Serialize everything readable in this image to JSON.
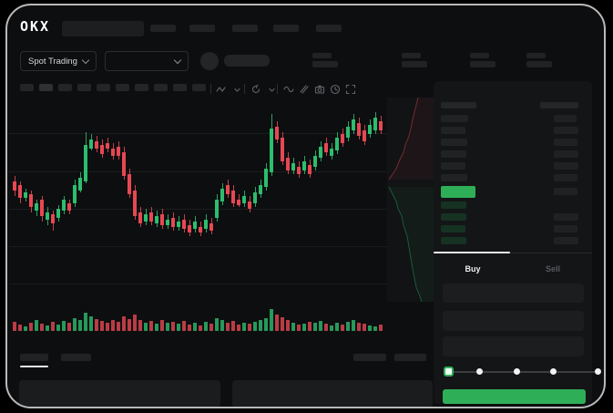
{
  "colors": {
    "accent_green": "#2fae58",
    "candle_green": "#2dbd6e",
    "candle_red": "#e64853",
    "bg": "#0d0e10",
    "panel": "#141517",
    "placeholder": "#202224",
    "bid_row_green": "#163222"
  },
  "header": {
    "logo": "OKX"
  },
  "market_bar": {
    "pair_selector_label": "Spot Trading"
  },
  "icons": {
    "header": [
      "search-placeholder",
      "chevron-down-icon",
      "avatar"
    ],
    "toolbar": [
      "zigzag-indicator-icon",
      "chevron-down-icon",
      "restore-icon",
      "chevron-down-icon",
      "wave-icon",
      "trendline-icon",
      "camera-icon",
      "clock-icon",
      "fullscreen-icon"
    ],
    "orderbook_toggles": [
      "book-both-icon",
      "book-bids-icon",
      "book-asks-icon"
    ]
  },
  "toolbar": {
    "interval_placeholder_count": 10,
    "active_index": 1
  },
  "order_book": {
    "asks": [
      {
        "price_w": 30,
        "amt_w": 25
      },
      {
        "price_w": 27,
        "amt_w": 27
      },
      {
        "price_w": 29,
        "amt_w": 26
      },
      {
        "price_w": 28,
        "amt_w": 27
      },
      {
        "price_w": 27,
        "amt_w": 27
      },
      {
        "price_w": 29,
        "amt_w": 26
      }
    ],
    "last_price_bar": {
      "w": 38,
      "h": 13
    },
    "bids": [
      {
        "price_w": 28,
        "amt_w": 0
      },
      {
        "price_w": 28,
        "amt_w": 27
      },
      {
        "price_w": 27,
        "amt_w": 26
      },
      {
        "price_w": 28,
        "amt_w": 27
      }
    ]
  },
  "trade_panel": {
    "tabs": [
      {
        "label": "Buy",
        "active": true
      },
      {
        "label": "Sell",
        "active": false
      }
    ],
    "input_count": 3,
    "slider": {
      "stops": 5,
      "active_index": 0,
      "stop_x": [
        481,
        515,
        556,
        596,
        645
      ]
    }
  },
  "chart_data": {
    "type": "candlestick",
    "note": "stylized OKX spot-trading preview; no numeric axis labels visible",
    "candles": [
      [
        "r",
        92,
        10,
        86,
        108
      ],
      [
        "r",
        96,
        14,
        92,
        116
      ],
      [
        "g",
        104,
        6,
        100,
        114
      ],
      [
        "r",
        106,
        14,
        102,
        126
      ],
      [
        "g",
        116,
        8,
        112,
        130
      ],
      [
        "r",
        112,
        18,
        108,
        136
      ],
      [
        "g",
        126,
        8,
        120,
        140
      ],
      [
        "r",
        128,
        10,
        124,
        146
      ],
      [
        "g",
        122,
        10,
        118,
        136
      ],
      [
        "g",
        112,
        12,
        108,
        128
      ],
      [
        "r",
        116,
        8,
        112,
        128
      ],
      [
        "g",
        96,
        20,
        90,
        120
      ],
      [
        "g",
        88,
        14,
        82,
        104
      ],
      [
        "g",
        52,
        40,
        38,
        94
      ],
      [
        "g",
        46,
        10,
        40,
        58
      ],
      [
        "r",
        48,
        8,
        42,
        60
      ],
      [
        "r",
        52,
        10,
        46,
        66
      ],
      [
        "r",
        50,
        6,
        44,
        60
      ],
      [
        "r",
        56,
        8,
        50,
        68
      ],
      [
        "r",
        54,
        10,
        48,
        68
      ],
      [
        "r",
        60,
        26,
        54,
        90
      ],
      [
        "r",
        84,
        22,
        78,
        110
      ],
      [
        "r",
        102,
        28,
        96,
        134
      ],
      [
        "r",
        126,
        12,
        120,
        142
      ],
      [
        "g",
        128,
        8,
        122,
        140
      ],
      [
        "r",
        126,
        10,
        120,
        140
      ],
      [
        "g",
        130,
        8,
        124,
        142
      ],
      [
        "r",
        128,
        12,
        122,
        144
      ],
      [
        "g",
        134,
        6,
        128,
        144
      ],
      [
        "r",
        132,
        10,
        126,
        146
      ],
      [
        "g",
        136,
        6,
        130,
        146
      ],
      [
        "r",
        134,
        10,
        128,
        148
      ],
      [
        "r",
        140,
        8,
        134,
        152
      ],
      [
        "g",
        136,
        8,
        130,
        148
      ],
      [
        "r",
        142,
        6,
        136,
        152
      ],
      [
        "g",
        134,
        10,
        128,
        148
      ],
      [
        "r",
        138,
        8,
        132,
        150
      ],
      [
        "g",
        112,
        20,
        106,
        136
      ],
      [
        "g",
        100,
        14,
        94,
        118
      ],
      [
        "r",
        96,
        10,
        90,
        110
      ],
      [
        "r",
        102,
        14,
        96,
        120
      ],
      [
        "r",
        112,
        6,
        106,
        120
      ],
      [
        "g",
        108,
        8,
        102,
        120
      ],
      [
        "r",
        114,
        8,
        108,
        126
      ],
      [
        "g",
        104,
        12,
        98,
        120
      ],
      [
        "g",
        96,
        10,
        90,
        110
      ],
      [
        "g",
        78,
        20,
        72,
        102
      ],
      [
        "g",
        34,
        48,
        18,
        86
      ],
      [
        "r",
        32,
        14,
        26,
        50
      ],
      [
        "r",
        44,
        26,
        38,
        74
      ],
      [
        "r",
        66,
        14,
        60,
        84
      ],
      [
        "g",
        72,
        8,
        66,
        84
      ],
      [
        "r",
        76,
        8,
        70,
        88
      ],
      [
        "g",
        70,
        10,
        64,
        84
      ],
      [
        "r",
        74,
        10,
        68,
        88
      ],
      [
        "g",
        64,
        12,
        58,
        80
      ],
      [
        "g",
        54,
        12,
        48,
        70
      ],
      [
        "r",
        50,
        10,
        44,
        64
      ],
      [
        "g",
        56,
        8,
        50,
        68
      ],
      [
        "g",
        44,
        14,
        38,
        62
      ],
      [
        "r",
        40,
        10,
        34,
        54
      ],
      [
        "g",
        32,
        12,
        26,
        48
      ],
      [
        "g",
        24,
        12,
        18,
        40
      ],
      [
        "r",
        28,
        14,
        22,
        46
      ],
      [
        "r",
        36,
        12,
        30,
        52
      ],
      [
        "g",
        30,
        10,
        24,
        44
      ],
      [
        "g",
        22,
        14,
        16,
        40
      ],
      [
        "r",
        26,
        10,
        20,
        40
      ]
    ],
    "volume": [
      10,
      7,
      5,
      9,
      12,
      8,
      6,
      10,
      7,
      11,
      9,
      14,
      12,
      20,
      16,
      13,
      11,
      9,
      12,
      10,
      16,
      13,
      18,
      12,
      9,
      11,
      8,
      12,
      9,
      10,
      8,
      11,
      7,
      9,
      6,
      10,
      8,
      14,
      12,
      9,
      11,
      7,
      9,
      8,
      10,
      12,
      14,
      24,
      18,
      15,
      12,
      9,
      7,
      8,
      10,
      9,
      11,
      8,
      6,
      9,
      7,
      10,
      12,
      9,
      8,
      6,
      5,
      7
    ],
    "depth": {
      "ask_line": "34,0 32,8 30,16 28,24 26,34 24,42 20,52 18,60 14,68 10,78 6,84 2,90",
      "ask_fill": "55,0 34,0 32,8 30,16 28,24 26,34 24,42 20,52 18,60 14,68 10,78 6,84 2,90 55,90",
      "bid_line": "2,98 6,106 10,114 12,122 16,130 18,140 22,152 24,164 26,176 28,188 30,198 32,208 36,218 38,224",
      "bid_fill": "55,98 2,98 6,106 10,114 12,122 16,130 18,140 22,152 24,164 26,176 28,188 30,198 32,208 36,218 38,224 55,224"
    }
  }
}
